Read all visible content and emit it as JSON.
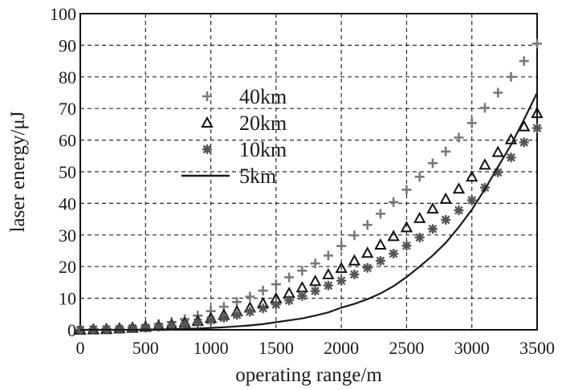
{
  "chart_data": {
    "type": "scatter",
    "title": "",
    "xlabel": "operating range/m",
    "ylabel": "laser energy/μJ",
    "xlim": [
      0,
      3500
    ],
    "ylim": [
      0,
      100
    ],
    "xticks": [
      0,
      500,
      1000,
      1500,
      2000,
      2500,
      3000,
      3500
    ],
    "yticks": [
      0,
      10,
      20,
      30,
      40,
      50,
      60,
      70,
      80,
      90,
      100
    ],
    "grid": true,
    "legend_position": "left-middle",
    "x": [
      0,
      100,
      200,
      300,
      400,
      500,
      600,
      700,
      800,
      900,
      1000,
      1100,
      1200,
      1300,
      1400,
      1500,
      1600,
      1700,
      1800,
      1900,
      2000,
      2100,
      2200,
      2300,
      2400,
      2500,
      2600,
      2700,
      2800,
      2900,
      3000,
      3100,
      3200,
      3300,
      3400,
      3500
    ],
    "series": [
      {
        "name": "40km",
        "marker": "plus",
        "color": "#7a7a7a",
        "values": [
          0,
          0.2,
          0.4,
          0.6,
          0.9,
          1.3,
          1.8,
          2.5,
          3.4,
          4.5,
          5.9,
          7.3,
          8.8,
          10.5,
          12.4,
          14.4,
          16.6,
          18.7,
          21.0,
          23.5,
          26.5,
          29.9,
          33.2,
          36.7,
          40.4,
          44.3,
          48.4,
          52.7,
          56.4,
          60.8,
          65.4,
          70.2,
          75.0,
          80.0,
          85.0,
          90.5
        ]
      },
      {
        "name": "20km",
        "marker": "triangle",
        "color": "#111111",
        "values": [
          0,
          0.1,
          0.2,
          0.4,
          0.6,
          0.9,
          1.2,
          1.6,
          2.2,
          2.8,
          3.7,
          4.7,
          5.8,
          7.0,
          8.4,
          9.9,
          11.6,
          13.4,
          15.4,
          17.5,
          19.5,
          21.9,
          24.3,
          26.9,
          29.6,
          32.4,
          35.3,
          38.3,
          41.4,
          44.6,
          48.4,
          52.2,
          56.2,
          60.2,
          64.3,
          68.5
        ]
      },
      {
        "name": "10km",
        "marker": "asterisk",
        "color": "#555555",
        "values": [
          0,
          0.1,
          0.2,
          0.3,
          0.5,
          0.7,
          1.0,
          1.3,
          1.8,
          2.3,
          3.0,
          3.8,
          4.7,
          5.7,
          6.8,
          8.0,
          9.3,
          10.7,
          12.3,
          14.0,
          15.5,
          17.5,
          19.6,
          21.8,
          24.1,
          26.6,
          29.2,
          31.9,
          34.8,
          37.8,
          41.0,
          45.0,
          49.8,
          54.5,
          59.3,
          63.8
        ]
      },
      {
        "name": "5km",
        "marker": "line",
        "color": "#1a1a1a",
        "values": [
          0,
          0,
          0,
          0,
          0,
          0.1,
          0.1,
          0.2,
          0.3,
          0.4,
          0.6,
          0.8,
          1.1,
          1.4,
          1.8,
          2.4,
          3.0,
          3.6,
          4.5,
          5.5,
          7.0,
          8.2,
          9.7,
          11.5,
          13.8,
          16.7,
          20.0,
          23.5,
          27.5,
          32.5,
          38.0,
          44.5,
          51.5,
          58.5,
          66.5,
          75.0
        ]
      }
    ]
  }
}
